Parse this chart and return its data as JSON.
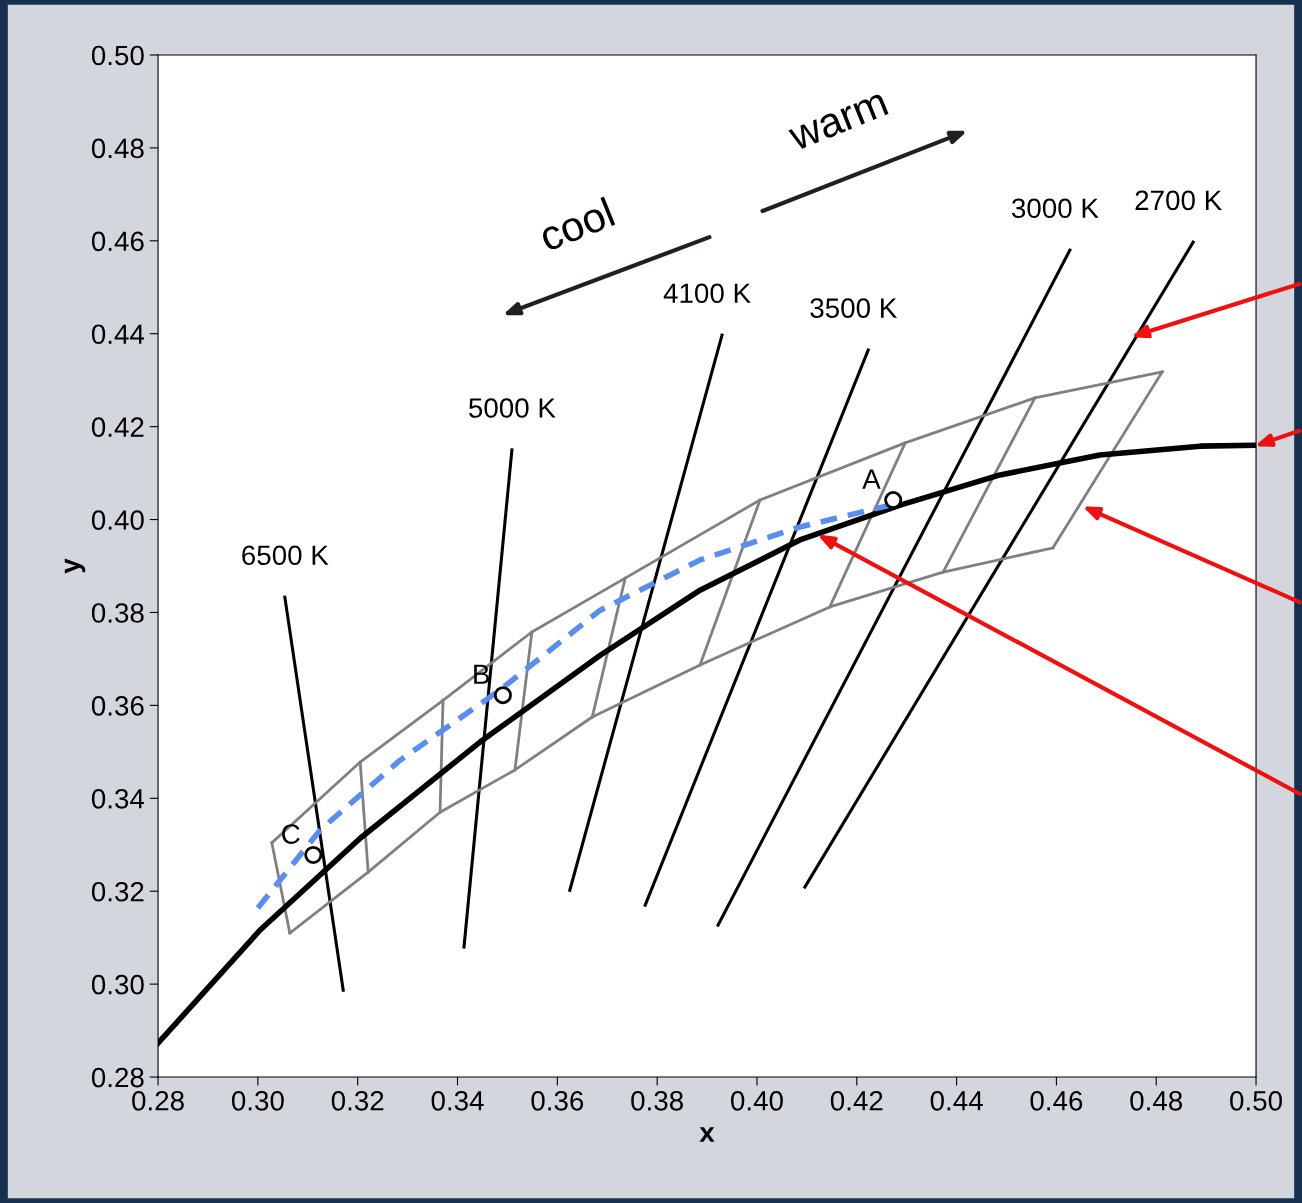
{
  "chart_data": {
    "type": "line",
    "xlabel": "x",
    "ylabel": "y",
    "xlim": [
      0.28,
      0.5
    ],
    "ylim": [
      0.28,
      0.5
    ],
    "xticks": [
      {
        "value": 0.28,
        "label": "0.28"
      },
      {
        "value": 0.3,
        "label": "0.30"
      },
      {
        "value": 0.32,
        "label": "0.32"
      },
      {
        "value": 0.34,
        "label": "0.34"
      },
      {
        "value": 0.36,
        "label": "0.36"
      },
      {
        "value": 0.38,
        "label": "0.38"
      },
      {
        "value": 0.4,
        "label": "0.40"
      },
      {
        "value": 0.42,
        "label": "0.42"
      },
      {
        "value": 0.44,
        "label": "0.44"
      },
      {
        "value": 0.46,
        "label": "0.46"
      },
      {
        "value": 0.48,
        "label": "0.48"
      },
      {
        "value": 0.5,
        "label": "0.50"
      }
    ],
    "yticks": [
      {
        "value": 0.28,
        "label": "0.28"
      },
      {
        "value": 0.3,
        "label": "0.30"
      },
      {
        "value": 0.32,
        "label": "0.32"
      },
      {
        "value": 0.34,
        "label": "0.34"
      },
      {
        "value": 0.36,
        "label": "0.36"
      },
      {
        "value": 0.38,
        "label": "0.38"
      },
      {
        "value": 0.4,
        "label": "0.40"
      },
      {
        "value": 0.42,
        "label": "0.42"
      },
      {
        "value": 0.44,
        "label": "0.44"
      },
      {
        "value": 0.46,
        "label": "0.46"
      },
      {
        "value": 0.48,
        "label": "0.48"
      },
      {
        "value": 0.5,
        "label": "0.50"
      }
    ],
    "grid": false,
    "series": [
      {
        "color": "#000000",
        "line_style": "solid",
        "x": [
          0.28,
          0.3004,
          0.3205,
          0.3445,
          0.3686,
          0.3886,
          0.4086,
          0.4287,
          0.4487,
          0.4687,
          0.4888,
          0.5
        ],
        "values": [
          0.2873,
          0.3116,
          0.3314,
          0.3521,
          0.3708,
          0.3848,
          0.3956,
          0.4031,
          0.4096,
          0.4139,
          0.4158,
          0.416
        ]
      },
      {
        "color": "#5b8def",
        "line_style": "dashed",
        "x": [
          0.3,
          0.3125,
          0.3285,
          0.3485,
          0.3686,
          0.3886,
          0.4086,
          0.4267
        ],
        "values": [
          0.3164,
          0.3332,
          0.3482,
          0.3633,
          0.3805,
          0.3913,
          0.3984,
          0.4031
        ]
      },
      {
        "color": "#000000",
        "line_style": "solid",
        "x": [
          0.3054,
          0.3171
        ],
        "values": [
          0.3833,
          0.2987
        ]
      },
      {
        "color": "#000000",
        "line_style": "solid",
        "x": [
          0.3509,
          0.3413
        ],
        "values": [
          0.415,
          0.308
        ]
      },
      {
        "color": "#000000",
        "line_style": "solid",
        "x": [
          0.393,
          0.3625
        ],
        "values": [
          0.4397,
          0.3202
        ]
      },
      {
        "color": "#000000",
        "line_style": "solid",
        "x": [
          0.4223,
          0.3776
        ],
        "values": [
          0.4365,
          0.317
        ]
      },
      {
        "color": "#000000",
        "line_style": "solid",
        "x": [
          0.4627,
          0.3922
        ],
        "values": [
          0.458,
          0.3127
        ]
      },
      {
        "color": "#000000",
        "line_style": "solid",
        "x": [
          0.4874,
          0.4096
        ],
        "values": [
          0.4597,
          0.3209
        ]
      },
      {
        "color": "#808080",
        "line_style": "solid",
        "x": [
          0.3028,
          0.3205,
          0.3371,
          0.3549,
          0.3736,
          0.4006,
          0.4297,
          0.4557,
          0.4812
        ],
        "values": [
          0.3304,
          0.3478,
          0.3611,
          0.3758,
          0.3874,
          0.4042,
          0.4165,
          0.4262,
          0.4318
        ]
      },
      {
        "color": "#808080",
        "line_style": "solid",
        "x": [
          0.3064,
          0.3221,
          0.3365,
          0.3515,
          0.367,
          0.3886,
          0.4146,
          0.4373,
          0.4593
        ],
        "values": [
          0.311,
          0.3241,
          0.337,
          0.3461,
          0.3575,
          0.3687,
          0.3812,
          0.3887,
          0.3939
        ]
      },
      {
        "color": "#808080",
        "line_style": "solid",
        "x": [
          0.3028,
          0.3064
        ],
        "values": [
          0.3304,
          0.311
        ]
      },
      {
        "color": "#808080",
        "line_style": "solid",
        "x": [
          0.3205,
          0.3221
        ],
        "values": [
          0.3478,
          0.3241
        ]
      },
      {
        "color": "#808080",
        "line_style": "solid",
        "x": [
          0.3371,
          0.3365
        ],
        "values": [
          0.3611,
          0.337
        ]
      },
      {
        "color": "#808080",
        "line_style": "solid",
        "x": [
          0.3549,
          0.3515
        ],
        "values": [
          0.3758,
          0.3461
        ]
      },
      {
        "color": "#808080",
        "line_style": "solid",
        "x": [
          0.3736,
          0.367
        ],
        "values": [
          0.3874,
          0.3575
        ]
      },
      {
        "color": "#808080",
        "line_style": "solid",
        "x": [
          0.4006,
          0.3886
        ],
        "values": [
          0.4042,
          0.3687
        ]
      },
      {
        "color": "#808080",
        "line_style": "solid",
        "x": [
          0.4297,
          0.4146
        ],
        "values": [
          0.4165,
          0.3812
        ]
      },
      {
        "color": "#808080",
        "line_style": "solid",
        "x": [
          0.4557,
          0.4373
        ],
        "values": [
          0.4262,
          0.3887
        ]
      },
      {
        "color": "#808080",
        "line_style": "solid",
        "x": [
          0.4812,
          0.4593
        ],
        "values": [
          0.4318,
          0.3939
        ]
      },
      {
        "type": "scatter",
        "color": "#000000",
        "marker": "circle",
        "x": [
          0.4273,
          0.3491,
          0.3111
        ],
        "values": [
          0.4042,
          0.3622,
          0.3278
        ]
      }
    ],
    "annotations": [
      "6500 K",
      "5000 K",
      "4100 K",
      "3500 K",
      "3000 K",
      "2700 K",
      "A",
      "B",
      "C",
      "cool",
      "warm"
    ]
  }
}
